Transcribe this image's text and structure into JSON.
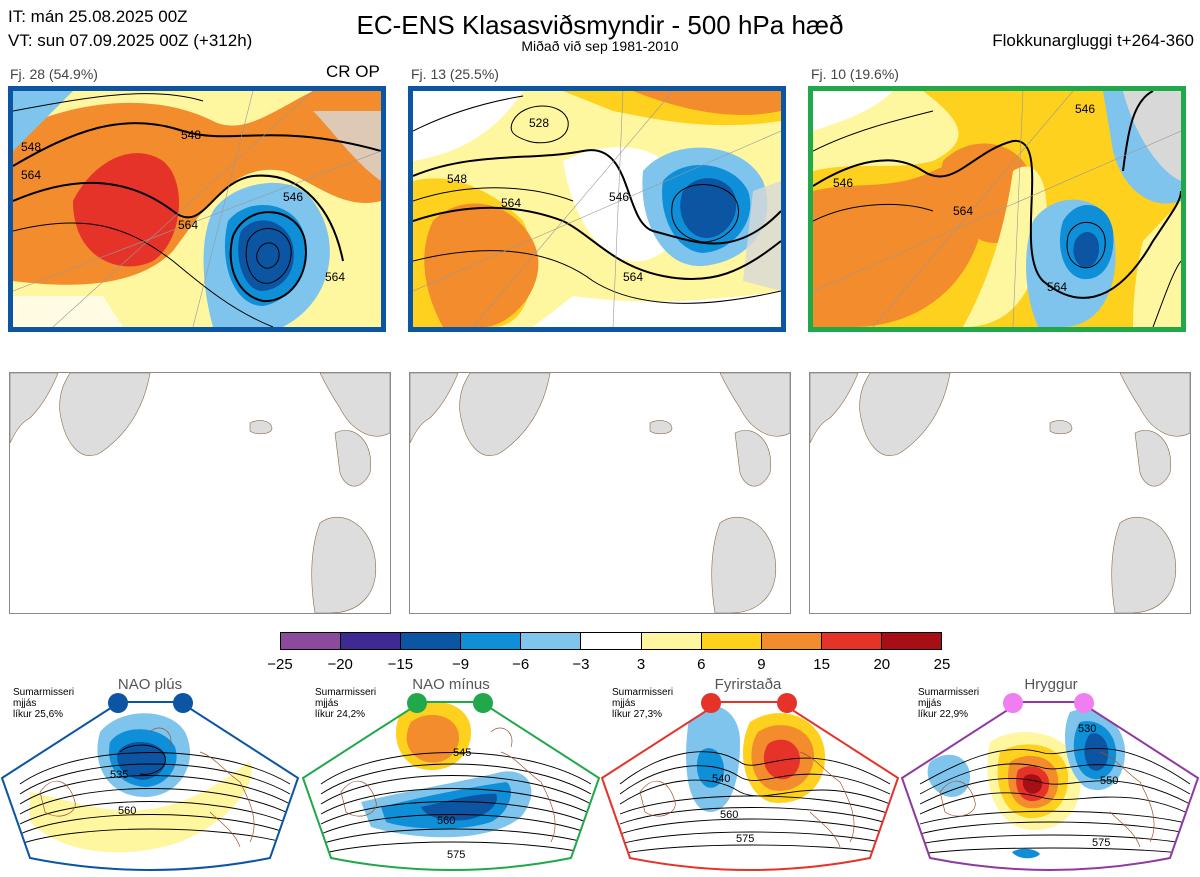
{
  "header": {
    "it": "IT: mán 25.08.2025 00Z",
    "vt": "VT: sun 07.09.2025 00Z  (+312h)",
    "title": "EC-ENS Klasasviðsmyndir - 500 hPa hæð",
    "subtitle": "Miðað við sep 1981-2010",
    "window": "Flokkunargluggi t+264-360"
  },
  "clusters": [
    {
      "label": "Fj. 28 (54.9%)",
      "border_color": "#0b55a2",
      "tag": "CR OP",
      "contour_labels": [
        "548",
        "564",
        "548",
        "564",
        "546",
        "564"
      ]
    },
    {
      "label": "Fj. 13 (25.5%)",
      "border_color": "#0b55a2",
      "contour_labels": [
        "528",
        "548",
        "564",
        "546",
        "564"
      ]
    },
    {
      "label": "Fj. 10 (19.6%)",
      "border_color": "#20a84a",
      "contour_labels": [
        "546",
        "564",
        "546",
        "564"
      ]
    }
  ],
  "colorbar": {
    "ticks": [
      "−25",
      "−20",
      "−15",
      "−9",
      "−6",
      "−3",
      "3",
      "6",
      "9",
      "15",
      "20",
      "25"
    ],
    "colors": [
      "#8b4a9c",
      "#3f2a92",
      "#0b55a2",
      "#0f8fd8",
      "#7ec4ec",
      "#ffffff",
      "#fff6a0",
      "#fdd11d",
      "#f28c2c",
      "#e5332a",
      "#a50f15"
    ]
  },
  "regimes": [
    {
      "name": "NAO plús",
      "dot_color": "#0b55a2",
      "border_color": "#0b55a2",
      "season": "Sumarmisseri",
      "smoothing": "mjjás",
      "likelihood": "líkur 25,6%",
      "contour_labels": [
        "535",
        "560"
      ]
    },
    {
      "name": "NAO mínus",
      "dot_color": "#20a84a",
      "border_color": "#20a84a",
      "season": "Sumarmisseri",
      "smoothing": "mjjás",
      "likelihood": "líkur 24,2%",
      "contour_labels": [
        "545",
        "560",
        "575"
      ]
    },
    {
      "name": "Fyrirstaða",
      "dot_color": "#e5332a",
      "border_color": "#e5332a",
      "season": "Sumarmisseri",
      "smoothing": "mjjás",
      "likelihood": "líkur 27,3%",
      "contour_labels": [
        "540",
        "560",
        "575"
      ]
    },
    {
      "name": "Hryggur",
      "dot_color": "#f07ef0",
      "border_color": "#8e3aa0",
      "season": "Sumarmisseri",
      "smoothing": "mjjás",
      "likelihood": "líkur 22,9%",
      "contour_labels": [
        "530",
        "550",
        "575"
      ]
    }
  ]
}
